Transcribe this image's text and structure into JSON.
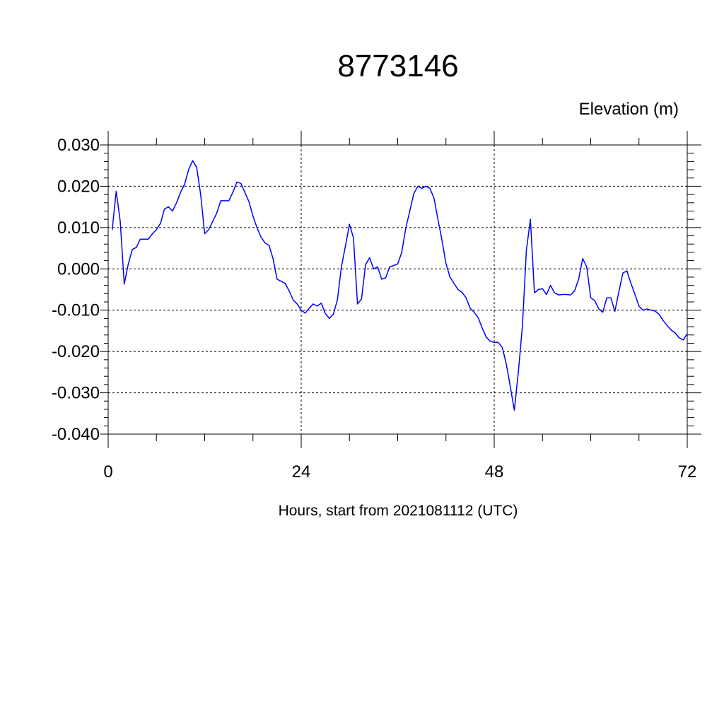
{
  "chart_data": {
    "type": "line",
    "title": "8773146",
    "units_label": "Elevation (m)",
    "xlabel": "Hours, start from 2021081112 (UTC)",
    "ylabel": "",
    "xlim": [
      0,
      72
    ],
    "ylim": [
      -0.04,
      0.03
    ],
    "x_ticks": [
      0,
      24,
      48,
      72
    ],
    "x_tick_labels": [
      "0",
      "24",
      "48",
      "72"
    ],
    "x_minor_step": 6,
    "y_ticks": [
      0.03,
      0.02,
      0.01,
      0.0,
      -0.01,
      -0.02,
      -0.03,
      -0.04
    ],
    "y_tick_labels": [
      "0.030",
      "0.020",
      "0.010",
      "0.000",
      "-0.010",
      "-0.020",
      "-0.030",
      "-0.040"
    ],
    "y_minor_step": 0.002,
    "grid": true,
    "grid_style": "dashed",
    "line_color": "#0000ff",
    "series": [
      {
        "x": [
          0.5,
          1.0,
          1.5,
          2.0,
          2.5,
          3.0,
          3.5,
          4.0,
          4.5,
          5.0,
          5.5,
          6.0,
          6.5,
          7.0,
          7.5,
          8.0,
          8.5,
          9.0,
          9.5,
          10.0,
          10.5,
          11.0,
          11.5,
          12.0,
          12.5,
          13.0,
          13.5,
          14.0,
          14.5,
          15.0,
          15.5,
          16.0,
          16.5,
          17.0,
          17.5,
          18.0,
          18.5,
          19.0,
          19.5,
          20.0,
          20.5,
          21.0,
          21.5,
          22.0,
          22.5,
          23.0,
          23.5,
          24.0,
          24.5,
          25.0,
          25.5,
          26.0,
          26.5,
          27.0,
          27.5,
          28.0,
          28.5,
          29.0,
          29.5,
          30.0,
          30.5,
          31.0,
          31.5,
          32.0,
          32.5,
          33.0,
          33.5,
          34.0,
          34.5,
          35.0,
          35.5,
          36.0,
          36.5,
          37.0,
          37.5,
          38.0,
          38.5,
          39.0,
          39.5,
          40.0,
          40.5,
          41.0,
          41.5,
          42.0,
          42.5,
          43.0,
          43.5,
          44.0,
          44.5,
          45.0,
          45.5,
          46.0,
          46.5,
          47.0,
          47.5,
          48.0,
          48.5,
          49.0,
          49.5,
          50.0,
          50.5,
          51.0,
          51.5,
          52.0,
          52.5,
          53.0,
          53.5,
          54.0,
          54.5,
          55.0,
          55.5,
          56.0,
          56.5,
          57.0,
          57.5,
          58.0,
          58.5,
          59.0,
          59.5,
          60.0,
          60.5,
          61.0,
          61.5,
          62.0,
          62.5,
          63.0,
          63.5,
          64.0,
          64.5,
          65.0,
          65.5,
          66.0,
          66.5,
          67.0,
          67.5,
          68.0,
          68.5,
          69.0,
          69.5,
          70.0,
          70.5,
          71.0,
          71.5,
          72.0
        ],
        "y": [
          0.0095,
          0.0188,
          0.0115,
          -0.0037,
          0.0012,
          0.0047,
          0.0052,
          0.0072,
          0.0072,
          0.0072,
          0.0085,
          0.0095,
          0.011,
          0.0145,
          0.015,
          0.014,
          0.016,
          0.0185,
          0.0205,
          0.024,
          0.0262,
          0.0246,
          0.018,
          0.0085,
          0.0095,
          0.0115,
          0.0135,
          0.0165,
          0.0165,
          0.0165,
          0.0185,
          0.021,
          0.0207,
          0.0185,
          0.0163,
          0.0128,
          0.01,
          0.0077,
          0.0063,
          0.0057,
          0.0025,
          -0.0025,
          -0.003,
          -0.0035,
          -0.0053,
          -0.0075,
          -0.0085,
          -0.01,
          -0.0107,
          -0.0095,
          -0.0085,
          -0.009,
          -0.0083,
          -0.0108,
          -0.012,
          -0.011,
          -0.0075,
          0.0005,
          0.0055,
          0.0108,
          0.0075,
          -0.0085,
          -0.0073,
          0.001,
          0.0027,
          0.0,
          0.0005,
          -0.0025,
          -0.0022,
          0.0005,
          0.0008,
          0.0012,
          0.004,
          0.0098,
          0.014,
          0.0182,
          0.02,
          0.0195,
          0.02,
          0.0195,
          0.0172,
          0.012,
          0.007,
          0.0013,
          -0.002,
          -0.0035,
          -0.005,
          -0.0057,
          -0.007,
          -0.0095,
          -0.0105,
          -0.0118,
          -0.0143,
          -0.0165,
          -0.0175,
          -0.0178,
          -0.0178,
          -0.019,
          -0.023,
          -0.0285,
          -0.0342,
          -0.025,
          -0.014,
          0.0045,
          0.012,
          -0.0058,
          -0.005,
          -0.0048,
          -0.0062,
          -0.004,
          -0.0058,
          -0.0063,
          -0.0062,
          -0.0062,
          -0.0063,
          -0.0053,
          -0.0025,
          0.0025,
          0.0005,
          -0.007,
          -0.0077,
          -0.0097,
          -0.0105,
          -0.007,
          -0.007,
          -0.0103,
          -0.0055,
          -0.001,
          -0.0005,
          -0.0035,
          -0.0062,
          -0.009,
          -0.01,
          -0.0097,
          -0.01,
          -0.0102,
          -0.011,
          -0.0125,
          -0.0137,
          -0.0148,
          -0.0155,
          -0.0167,
          -0.0172,
          -0.0157
        ]
      }
    ]
  }
}
